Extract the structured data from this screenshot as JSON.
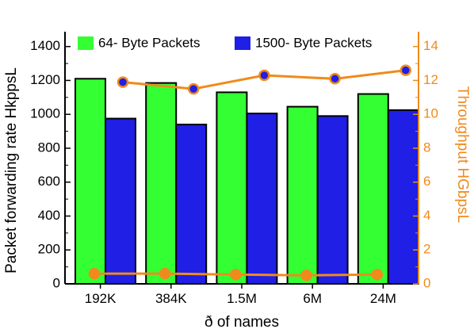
{
  "chart_data": {
    "type": "bar",
    "title": "",
    "xlabel": "ð of names",
    "ylabel": "Packet forwarding rate HkppsL",
    "ylabel_right": "Throughput HGbpsL",
    "categories": [
      "192K",
      "384K",
      "1.5M",
      "6M",
      "24M"
    ],
    "ylim": [
      0,
      1450
    ],
    "yticks": [
      0,
      200,
      400,
      600,
      800,
      1000,
      1200,
      1400
    ],
    "ylim_right": [
      0,
      14.5
    ],
    "yticks_right": [
      0,
      2,
      4,
      6,
      8,
      10,
      12,
      14
    ],
    "legend_position": "top",
    "grid": false,
    "series": [
      {
        "name": "64- Byte Packets",
        "type": "bar",
        "axis": "left",
        "color": "#33ff33",
        "values": [
          1210,
          1185,
          1130,
          1045,
          1120
        ]
      },
      {
        "name": "1500- Byte Packets",
        "type": "bar",
        "axis": "left",
        "color": "#1f1fe6",
        "values": [
          975,
          940,
          1005,
          990,
          1025
        ]
      },
      {
        "type": "line",
        "axis": "right",
        "color": "#f08a1c",
        "marker_fill": "#1f1fe6",
        "values": [
          11.9,
          11.5,
          12.3,
          12.1,
          12.6
        ]
      },
      {
        "type": "line",
        "axis": "right",
        "color": "#f08a1c",
        "marker_fill": "#f08a1c",
        "values": [
          0.6,
          0.6,
          0.55,
          0.5,
          0.55
        ]
      }
    ]
  }
}
